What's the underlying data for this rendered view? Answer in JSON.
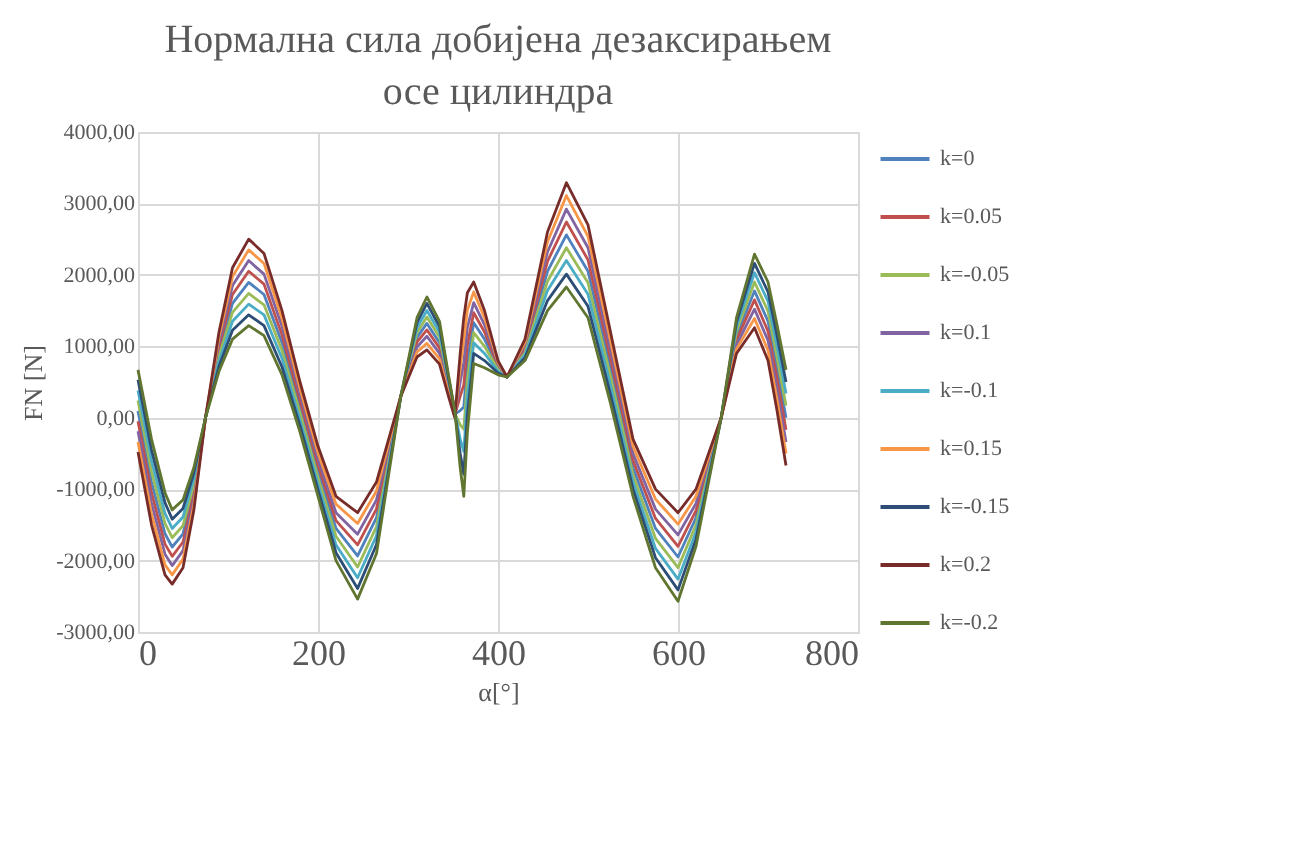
{
  "chart_data": {
    "type": "line",
    "title": "Нормална сила добијена дезаксирањем осе цилиндра",
    "xlabel": "α[°]",
    "ylabel": "FN [N]",
    "xlim": [
      0,
      800
    ],
    "xticks": [
      0,
      200,
      400,
      600,
      800
    ],
    "ylim": [
      -3000,
      4000
    ],
    "yticks": [
      {
        "value": -3000,
        "label": "-3000,00"
      },
      {
        "value": -2000,
        "label": "-2000,00"
      },
      {
        "value": -1000,
        "label": "-1000,00"
      },
      {
        "value": 0,
        "label": "0,00"
      },
      {
        "value": 1000,
        "label": "1000,00"
      },
      {
        "value": 2000,
        "label": "2000,00"
      },
      {
        "value": 3000,
        "label": "3000,00"
      },
      {
        "value": 4000,
        "label": "4000,00"
      }
    ],
    "grid": true,
    "legend": "right",
    "marker": "none",
    "line_style": "solid",
    "x": [
      0,
      15,
      30,
      38,
      50,
      62,
      75,
      90,
      105,
      123,
      140,
      160,
      180,
      200,
      220,
      244,
      265,
      292,
      310,
      321,
      335,
      345,
      352,
      358,
      362,
      366,
      373,
      385,
      400,
      410,
      430,
      455,
      476,
      500,
      525,
      550,
      575,
      600,
      620,
      648,
      665,
      685,
      700,
      710,
      720
    ],
    "series": [
      {
        "name": "k=0",
        "color": "#4f81bd",
        "values": [
          95,
          -900,
          -1625,
          -1810,
          -1625,
          -1000,
          0,
          925,
          1600,
          1895,
          1725,
          1050,
          150,
          -750,
          -1550,
          -1935,
          -1400,
          300,
          1125,
          1320,
          1050,
          450,
          50,
          100,
          150,
          775,
          1330,
          1100,
          700,
          570,
          950,
          2050,
          2560,
          2050,
          700,
          -700,
          -1550,
          -1950,
          -1400,
          0,
          1150,
          1775,
          1350,
          700,
          0
        ]
      },
      {
        "name": "k=0.05",
        "color": "#c0504d",
        "values": [
          -50,
          -1050,
          -1770,
          -1940,
          -1740,
          -1075,
          0,
          990,
          1725,
          2050,
          1870,
          1160,
          240,
          -660,
          -1440,
          -1780,
          -1275,
          300,
          1060,
          1230,
          975,
          410,
          40,
          300,
          460,
          1020,
          1470,
          1200,
          725,
          570,
          990,
          2190,
          2740,
          2210,
          825,
          -600,
          -1410,
          -1800,
          -1300,
          0,
          1090,
          1650,
          1210,
          550,
          -170
        ]
      },
      {
        "name": "k=-0.05",
        "color": "#9bbb59",
        "values": [
          240,
          -750,
          -1480,
          -1680,
          -1510,
          -925,
          0,
          860,
          1475,
          1740,
          1580,
          940,
          60,
          -840,
          -1660,
          -2090,
          -1525,
          300,
          1190,
          1410,
          1125,
          490,
          60,
          -100,
          -160,
          530,
          1190,
          1000,
          675,
          570,
          910,
          1910,
          2380,
          1890,
          575,
          -800,
          -1690,
          -2100,
          -1500,
          0,
          1210,
          1900,
          1490,
          850,
          170
        ]
      },
      {
        "name": "k=0.1",
        "color": "#8064a2",
        "values": [
          -190,
          -1200,
          -1910,
          -2070,
          -1860,
          -1150,
          0,
          1060,
          1850,
          2200,
          2010,
          1280,
          330,
          -580,
          -1330,
          -1630,
          -1150,
          300,
          990,
          1140,
          900,
          380,
          25,
          500,
          770,
          1260,
          1610,
          1300,
          750,
          570,
          1030,
          2320,
          2920,
          2380,
          950,
          -500,
          -1280,
          -1640,
          -1200,
          0,
          1020,
          1520,
          1080,
          400,
          -340
        ]
      },
      {
        "name": "k=-0.1",
        "color": "#4bacc6",
        "values": [
          380,
          -600,
          -1340,
          -1550,
          -1390,
          -850,
          0,
          790,
          1350,
          1590,
          1440,
          830,
          -30,
          -930,
          -1780,
          -2240,
          -1650,
          300,
          1260,
          1500,
          1200,
          530,
          75,
          -300,
          -470,
          290,
          1050,
          900,
          650,
          570,
          880,
          1780,
          2200,
          1730,
          450,
          -900,
          -1830,
          -2260,
          -1600,
          0,
          1280,
          2030,
          1630,
          1000,
          340
        ]
      },
      {
        "name": "k=0.15",
        "color": "#f79646",
        "values": [
          -340,
          -1350,
          -2060,
          -2200,
          -1980,
          -1225,
          0,
          1130,
          1975,
          2350,
          2160,
          1390,
          410,
          -490,
          -1210,
          -1480,
          -1025,
          300,
          920,
          1040,
          825,
          340,
          10,
          700,
          1090,
          1510,
          1760,
          1400,
          775,
          570,
          1060,
          2460,
          3110,
          2540,
          1075,
          -400,
          -1140,
          -1490,
          -1100,
          0,
          960,
          1390,
          940,
          250,
          -500
        ]
      },
      {
        "name": "k=-0.15",
        "color": "#2c4d75",
        "values": [
          530,
          -450,
          -1190,
          -1420,
          -1270,
          -775,
          0,
          720,
          1225,
          1440,
          1290,
          710,
          -110,
          -1010,
          -1890,
          -2390,
          -1775,
          300,
          1330,
          1600,
          1275,
          560,
          90,
          -500,
          -790,
          40,
          900,
          800,
          625,
          570,
          840,
          1640,
          2010,
          1560,
          325,
          -1000,
          -1960,
          -2410,
          -1700,
          0,
          1340,
          2160,
          1760,
          1150,
          500
        ]
      },
      {
        "name": "k=0.2",
        "color": "#772c2a",
        "values": [
          -480,
          -1500,
          -2200,
          -2330,
          -2100,
          -1300,
          0,
          1200,
          2100,
          2500,
          2300,
          1500,
          500,
          -400,
          -1100,
          -1330,
          -900,
          300,
          850,
          950,
          750,
          300,
          0,
          900,
          1400,
          1750,
          1900,
          1500,
          800,
          570,
          1100,
          2600,
          3290,
          2700,
          1200,
          -300,
          -1000,
          -1330,
          -1000,
          0,
          900,
          1260,
          800,
          100,
          -670
        ]
      },
      {
        "name": "k=-0.2",
        "color": "#5f7530",
        "values": [
          670,
          -300,
          -1050,
          -1290,
          -1150,
          -700,
          0,
          650,
          1100,
          1290,
          1150,
          600,
          -200,
          -1100,
          -2000,
          -2540,
          -1900,
          300,
          1400,
          1690,
          1350,
          600,
          100,
          -700,
          -1100,
          -200,
          760,
          700,
          600,
          570,
          800,
          1500,
          1830,
          1400,
          200,
          -1100,
          -2100,
          -2570,
          -1800,
          0,
          1400,
          2290,
          1900,
          1300,
          670
        ]
      }
    ]
  }
}
